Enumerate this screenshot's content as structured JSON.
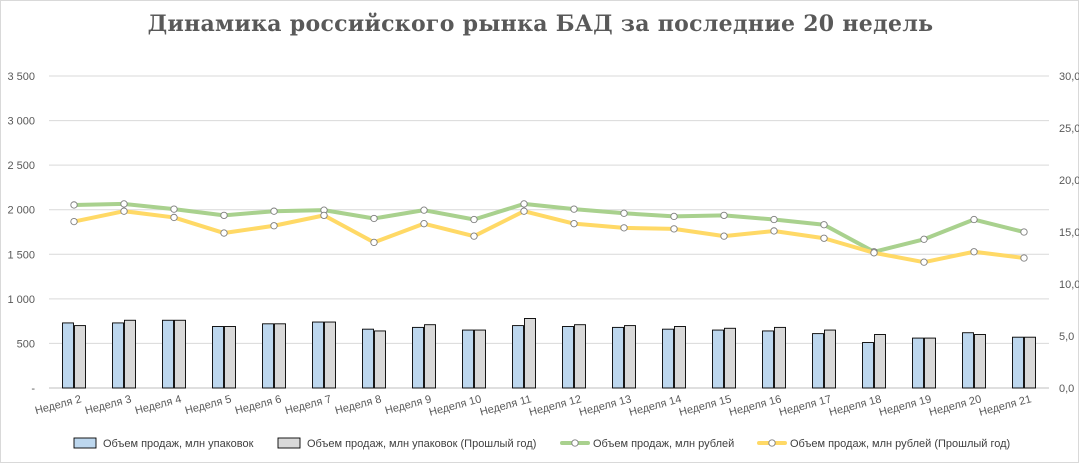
{
  "chart_data": {
    "type": "bar+line",
    "title": "Динамика российского рынка БАД за последние 20 недель",
    "categories": [
      "Неделя 2",
      "Неделя 3",
      "Неделя 4",
      "Неделя 5",
      "Неделя 6",
      "Неделя 7",
      "Неделя 8",
      "Неделя 9",
      "Неделя 10",
      "Неделя 11",
      "Неделя 12",
      "Неделя 13",
      "Неделя 14",
      "Неделя 15",
      "Неделя 16",
      "Неделя 17",
      "Неделя 18",
      "Неделя 19",
      "Неделя 20",
      "Неделя 21"
    ],
    "y_left": {
      "ylim": [
        0,
        3500
      ],
      "ticks": [
        "-",
        "500",
        "1 000",
        "1 500",
        "2 000",
        "2 500",
        "3 000",
        "3 500"
      ]
    },
    "y_right": {
      "ylim": [
        0,
        30
      ],
      "ticks": [
        "0,0",
        "5,0",
        "10,0",
        "15,0",
        "20,0",
        "25,0",
        "30,0"
      ]
    },
    "grid": true,
    "legend_position": "bottom",
    "series": [
      {
        "name": "Объем продаж, млн упаковок",
        "kind": "bar",
        "axis": "left",
        "color": "#bdd7ee",
        "values": [
          730,
          730,
          760,
          690,
          720,
          740,
          660,
          680,
          650,
          700,
          690,
          680,
          660,
          650,
          640,
          610,
          510,
          560,
          620,
          570
        ]
      },
      {
        "name": "Объем продаж, млн упаковок (Прошлый год)",
        "kind": "bar",
        "axis": "left",
        "color": "#d9d9d9",
        "values": [
          700,
          760,
          760,
          690,
          720,
          740,
          640,
          710,
          650,
          780,
          710,
          700,
          690,
          670,
          680,
          650,
          600,
          560,
          600,
          570
        ]
      },
      {
        "name": "Объем продаж, млн рублей",
        "kind": "line",
        "axis": "right",
        "color": "#a9d18e",
        "values": [
          17.6,
          17.7,
          17.2,
          16.6,
          17.0,
          17.1,
          16.3,
          17.1,
          16.2,
          17.7,
          17.2,
          16.8,
          16.5,
          16.6,
          16.2,
          15.7,
          13.1,
          14.3,
          16.2,
          15.0
        ]
      },
      {
        "name": "Объем продаж, млн рублей (Прошлый год)",
        "kind": "line",
        "axis": "right",
        "color": "#ffd966",
        "values": [
          16.0,
          17.0,
          16.4,
          14.9,
          15.6,
          16.6,
          14.0,
          15.8,
          14.6,
          17.0,
          15.8,
          15.4,
          15.3,
          14.6,
          15.1,
          14.4,
          13.0,
          12.1,
          13.1,
          12.5
        ]
      }
    ]
  }
}
